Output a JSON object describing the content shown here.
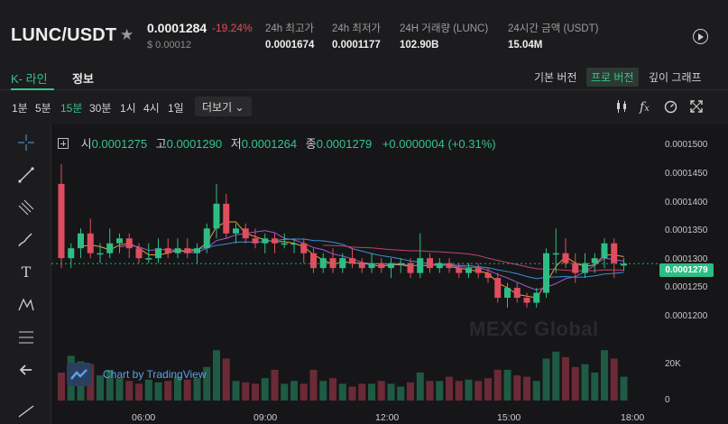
{
  "header": {
    "pair": "LUNC/USDT",
    "price": "0.0001284",
    "change": "-19.24%",
    "usd_price": "$ 0.00012",
    "stats": [
      {
        "label": "24h 최고가",
        "value": "0.0001674"
      },
      {
        "label": "24h 최저가",
        "value": "0.0001177"
      },
      {
        "label": "24H 거래량 (LUNC)",
        "value": "102.90B"
      },
      {
        "label": "24시간 금액 (USDT)",
        "value": "15.04M"
      }
    ]
  },
  "tabs": {
    "kline": "K- 라인",
    "info": "정보",
    "views": [
      "기본 버전",
      "프로 버전",
      "깊이 그래프"
    ],
    "active_view": "프로 버전"
  },
  "intervals": {
    "items": [
      "1분",
      "5분",
      "15분",
      "30분",
      "1시",
      "4시",
      "1일"
    ],
    "active": "15분",
    "more": "더보기"
  },
  "legend": {
    "open_label": "시",
    "open": "0.0001275",
    "high_label": "고",
    "high": "0.0001290",
    "low_label": "저",
    "low": "0.0001264",
    "close_label": "종",
    "close": "0.0001279",
    "change": "+0.0000004 (+0.31%)"
  },
  "yaxis": {
    "ticks": [
      "0.0001500",
      "0.0001450",
      "0.0001400",
      "0.0001350",
      "0.0001300",
      "0.0001250",
      "0.0001200"
    ],
    "current": "0.0001279",
    "vol_ticks": [
      "20K",
      "0"
    ]
  },
  "xaxis": {
    "ticks": [
      "06:00",
      "09:00",
      "12:00",
      "15:00",
      "18:00"
    ]
  },
  "watermark": "MEXC Global",
  "tradingview": "Chart by TradingView",
  "colors": {
    "up": "#2ebd85",
    "down": "#e04d5f",
    "accent": "#35c48d",
    "ma_fast": "#e6a23c",
    "ma_mid": "#9b59d0",
    "ma_slow": "#3b8fd9",
    "ma_long": "#c0446a"
  },
  "chart_data": {
    "type": "candlestick",
    "interval": "15분",
    "ylim": [
      0.000117,
      0.000152
    ],
    "candles": [
      {
        "o": 0.000144,
        "h": 0.000148,
        "l": 0.000127,
        "c": 0.000129
      },
      {
        "o": 0.000129,
        "h": 0.000132,
        "l": 0.000127,
        "c": 0.000131
      },
      {
        "o": 0.000131,
        "h": 0.000135,
        "l": 0.000129,
        "c": 0.000134
      },
      {
        "o": 0.000134,
        "h": 0.000137,
        "l": 0.000129,
        "c": 0.00013
      },
      {
        "o": 0.00013,
        "h": 0.000132,
        "l": 0.000128,
        "c": 0.00013
      },
      {
        "o": 0.00013,
        "h": 0.000135,
        "l": 0.000129,
        "c": 0.000132
      },
      {
        "o": 0.000132,
        "h": 0.000134,
        "l": 0.00013,
        "c": 0.000133
      },
      {
        "o": 0.000133,
        "h": 0.000134,
        "l": 0.000129,
        "c": 0.000131
      },
      {
        "o": 0.000131,
        "h": 0.000132,
        "l": 0.000128,
        "c": 0.000129
      },
      {
        "o": 0.000129,
        "h": 0.000132,
        "l": 0.000128,
        "c": 0.000129
      },
      {
        "o": 0.000129,
        "h": 0.000133,
        "l": 0.000128,
        "c": 0.000131
      },
      {
        "o": 0.000131,
        "h": 0.000133,
        "l": 0.000129,
        "c": 0.00013
      },
      {
        "o": 0.00013,
        "h": 0.000133,
        "l": 0.000129,
        "c": 0.000131
      },
      {
        "o": 0.000131,
        "h": 0.000133,
        "l": 0.000129,
        "c": 0.00013
      },
      {
        "o": 0.00013,
        "h": 0.000132,
        "l": 0.000128,
        "c": 0.000131
      },
      {
        "o": 0.000131,
        "h": 0.000136,
        "l": 0.00013,
        "c": 0.000135
      },
      {
        "o": 0.000135,
        "h": 0.000144,
        "l": 0.000133,
        "c": 0.00014
      },
      {
        "o": 0.00014,
        "h": 0.000142,
        "l": 0.000133,
        "c": 0.000134
      },
      {
        "o": 0.000134,
        "h": 0.000136,
        "l": 0.000132,
        "c": 0.000135
      },
      {
        "o": 0.000135,
        "h": 0.000136,
        "l": 0.000132,
        "c": 0.000133
      },
      {
        "o": 0.000133,
        "h": 0.000135,
        "l": 0.000131,
        "c": 0.000132
      },
      {
        "o": 0.000132,
        "h": 0.000134,
        "l": 0.00013,
        "c": 0.000133
      },
      {
        "o": 0.000133,
        "h": 0.000134,
        "l": 0.00013,
        "c": 0.000132
      },
      {
        "o": 0.000132,
        "h": 0.000134,
        "l": 0.000131,
        "c": 0.000132
      },
      {
        "o": 0.000132,
        "h": 0.000133,
        "l": 0.00013,
        "c": 0.000132
      },
      {
        "o": 0.000132,
        "h": 0.000133,
        "l": 0.000128,
        "c": 0.00013
      },
      {
        "o": 0.00013,
        "h": 0.000131,
        "l": 0.000126,
        "c": 0.000127
      },
      {
        "o": 0.000127,
        "h": 0.00013,
        "l": 0.000126,
        "c": 0.000129
      },
      {
        "o": 0.000129,
        "h": 0.000131,
        "l": 0.000126,
        "c": 0.000127
      },
      {
        "o": 0.000127,
        "h": 0.00013,
        "l": 0.000126,
        "c": 0.000129
      },
      {
        "o": 0.000129,
        "h": 0.000131,
        "l": 0.000127,
        "c": 0.000128
      },
      {
        "o": 0.000128,
        "h": 0.000129,
        "l": 0.000126,
        "c": 0.000127
      },
      {
        "o": 0.000127,
        "h": 0.00013,
        "l": 0.000126,
        "c": 0.000128
      },
      {
        "o": 0.000128,
        "h": 0.000129,
        "l": 0.000126,
        "c": 0.000127
      },
      {
        "o": 0.000127,
        "h": 0.000129,
        "l": 0.000125,
        "c": 0.000128
      },
      {
        "o": 0.000128,
        "h": 0.000129,
        "l": 0.000126,
        "c": 0.000128
      },
      {
        "o": 0.000128,
        "h": 0.000129,
        "l": 0.000125,
        "c": 0.000126
      },
      {
        "o": 0.000126,
        "h": 0.000134,
        "l": 0.000125,
        "c": 0.000129
      },
      {
        "o": 0.000129,
        "h": 0.00013,
        "l": 0.000126,
        "c": 0.000127
      },
      {
        "o": 0.000127,
        "h": 0.000129,
        "l": 0.000126,
        "c": 0.000128
      },
      {
        "o": 0.000128,
        "h": 0.000129,
        "l": 0.000126,
        "c": 0.000127
      },
      {
        "o": 0.000127,
        "h": 0.000128,
        "l": 0.000125,
        "c": 0.000126
      },
      {
        "o": 0.000126,
        "h": 0.000128,
        "l": 0.000125,
        "c": 0.000127
      },
      {
        "o": 0.000127,
        "h": 0.000128,
        "l": 0.000125,
        "c": 0.000126
      },
      {
        "o": 0.000126,
        "h": 0.000127,
        "l": 0.000124,
        "c": 0.000125
      },
      {
        "o": 0.000125,
        "h": 0.000126,
        "l": 0.00012,
        "c": 0.000121
      },
      {
        "o": 0.000121,
        "h": 0.000124,
        "l": 0.000119,
        "c": 0.000123
      },
      {
        "o": 0.000123,
        "h": 0.000124,
        "l": 0.00012,
        "c": 0.000121
      },
      {
        "o": 0.000121,
        "h": 0.000122,
        "l": 0.000119,
        "c": 0.00012
      },
      {
        "o": 0.00012,
        "h": 0.000123,
        "l": 0.000119,
        "c": 0.000122
      },
      {
        "o": 0.000122,
        "h": 0.000131,
        "l": 0.000121,
        "c": 0.00013
      },
      {
        "o": 0.00013,
        "h": 0.000135,
        "l": 0.000126,
        "c": 0.00013
      },
      {
        "o": 0.00013,
        "h": 0.000133,
        "l": 0.000127,
        "c": 0.000128
      },
      {
        "o": 0.000128,
        "h": 0.00013,
        "l": 0.000124,
        "c": 0.000126
      },
      {
        "o": 0.000126,
        "h": 0.00013,
        "l": 0.000125,
        "c": 0.000128
      },
      {
        "o": 0.000128,
        "h": 0.00013,
        "l": 0.000126,
        "c": 0.000129
      },
      {
        "o": 0.000129,
        "h": 0.000133,
        "l": 0.000127,
        "c": 0.000132
      },
      {
        "o": 0.000132,
        "h": 0.000133,
        "l": 0.000125,
        "c": 0.000128
      },
      {
        "o": 0.0001275,
        "h": 0.000129,
        "l": 0.0001264,
        "c": 0.0001279
      }
    ],
    "volume": [
      20,
      32,
      28,
      26,
      18,
      22,
      16,
      14,
      12,
      15,
      13,
      14,
      17,
      15,
      16,
      24,
      36,
      30,
      14,
      13,
      12,
      16,
      22,
      12,
      14,
      12,
      22,
      14,
      16,
      12,
      10,
      12,
      12,
      14,
      12,
      10,
      13,
      20,
      14,
      14,
      17,
      14,
      15,
      14,
      16,
      22,
      22,
      18,
      17,
      14,
      30,
      35,
      31,
      24,
      26,
      20,
      36,
      30,
      17
    ]
  }
}
